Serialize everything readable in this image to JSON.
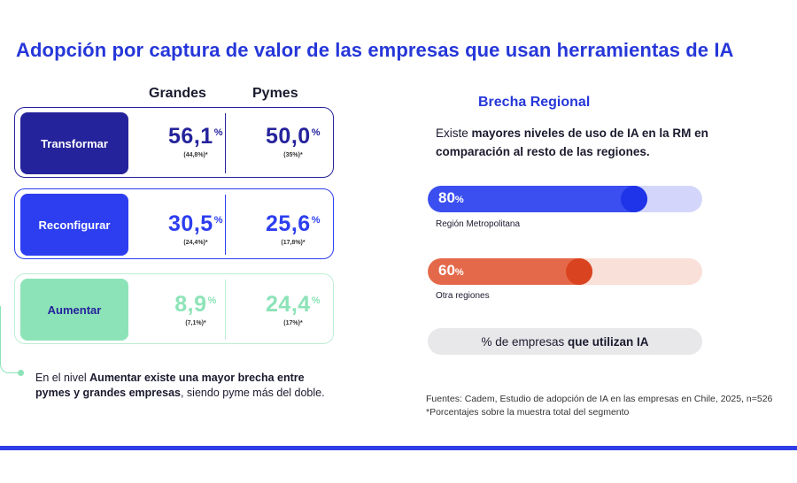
{
  "title": "Adopción por captura de valor de las empresas que usan herramientas de IA",
  "columns": {
    "grandes": "Grandes",
    "pymes": "Pymes"
  },
  "rows": [
    {
      "label": "Transformar",
      "grandes": "56,1",
      "grandes_sub": "(44,8%)*",
      "pymes": "50,0",
      "pymes_sub": "(35%)*",
      "pct": "%"
    },
    {
      "label": "Reconfigurar",
      "grandes": "30,5",
      "grandes_sub": "(24,4%)*",
      "pymes": "25,6",
      "pymes_sub": "(17,8%)*",
      "pct": "%"
    },
    {
      "label": "Aumentar",
      "grandes": "8,9",
      "grandes_sub": "(7,1%)*",
      "pymes": "24,4",
      "pymes_sub": "(17%)*",
      "pct": "%"
    }
  ],
  "note": {
    "p1": "En el nivel ",
    "b1": "Aumentar existe una mayor brecha entre pymes y grandes empresas",
    "p2": ", siendo pyme más del doble."
  },
  "regional": {
    "title": "Brecha Regional",
    "desc_p1": "Existe ",
    "desc_b1": "mayores niveles de uso de IA en la RM en comparación al resto de las regiones."
  },
  "bars": [
    {
      "value": "80",
      "fraction": 0.8,
      "pct": "%",
      "label": "Región Metropolitana",
      "fill_color": "#3b4ef0",
      "track_color": "#d3d6fa",
      "knob_color": "#1f34e8"
    },
    {
      "value": "60",
      "fraction": 0.6,
      "pct": "%",
      "label": "Otra regiones",
      "fill_color": "#e4694a",
      "track_color": "#f9e0d8",
      "knob_color": "#d9431f"
    }
  ],
  "legend": {
    "p1": "% de empresas ",
    "b1": "que utilizan IA"
  },
  "source": {
    "line1": "Fuentes: Cadem, Estudio de adopción de IA en las empresas en Chile, 2025, n=526",
    "line2": "*Porcentajes sobre la muestra total del segmento"
  },
  "colors": {
    "accent": "#2637d9",
    "transformar": "#25239b",
    "reconfigurar": "#2d3ef0",
    "aumentar": "#8de3b8"
  }
}
